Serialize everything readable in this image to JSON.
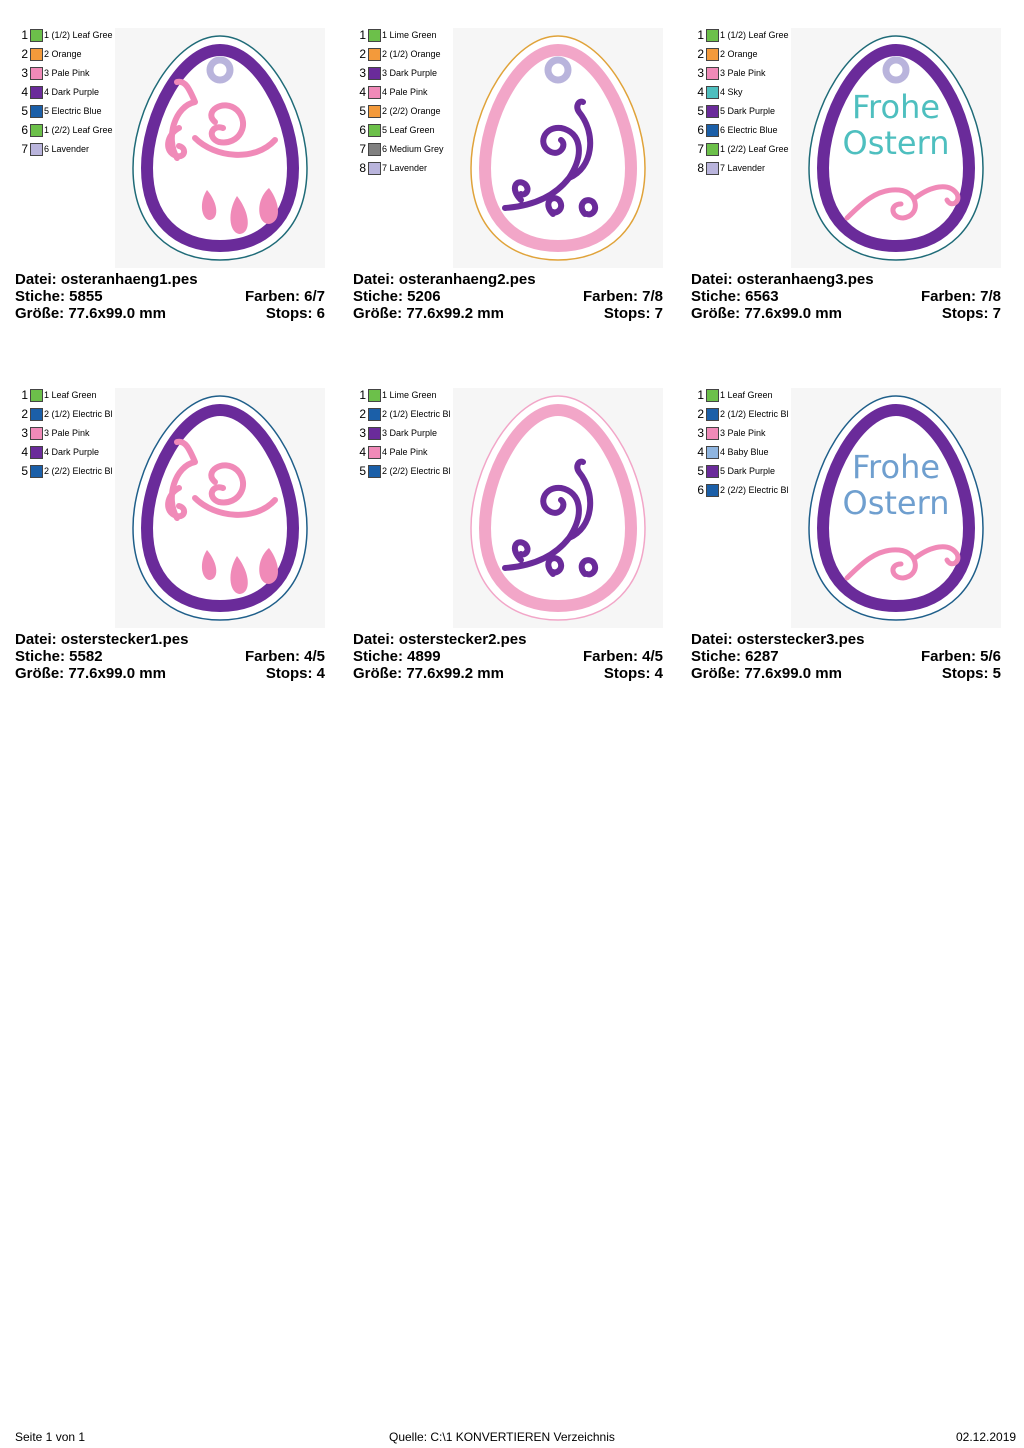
{
  "designs": [
    {
      "id": "osteranhaeng1",
      "file_label": "Datei: osteranhaeng1.pes",
      "stitches_label": "Stiche: 5855",
      "colors_label": "Farben: 6/7",
      "size_label": "Größe: 77.6x99.0 mm",
      "stops_label": "Stops: 6",
      "variant": "swirl-drops",
      "has_loop": true,
      "outline_color": "#6a2b9a",
      "border_color": "#1f6b78",
      "legend": [
        {
          "num": "1",
          "label": "1 (1/2) Leaf Gree",
          "color": "#6cc04a"
        },
        {
          "num": "2",
          "label": "2 Orange",
          "color": "#f39a3b"
        },
        {
          "num": "3",
          "label": "3 Pale Pink",
          "color": "#f08ab8"
        },
        {
          "num": "4",
          "label": "4 Dark Purple",
          "color": "#6a2b9a"
        },
        {
          "num": "5",
          "label": "5 Electric Blue",
          "color": "#1b5fa8"
        },
        {
          "num": "6",
          "label": "1 (2/2) Leaf Gree",
          "color": "#6cc04a"
        },
        {
          "num": "7",
          "label": "6 Lavender",
          "color": "#b9b4dc"
        }
      ]
    },
    {
      "id": "osteranhaeng2",
      "file_label": "Datei: osteranhaeng2.pes",
      "stitches_label": "Stiche: 5206",
      "colors_label": "Farben: 7/8",
      "size_label": "Größe: 77.6x99.2 mm",
      "stops_label": "Stops: 7",
      "variant": "curl",
      "has_loop": true,
      "outline_color": "#f2a6c8",
      "border_color": "#e0a33a",
      "legend": [
        {
          "num": "1",
          "label": "1 Lime Green",
          "color": "#6cc04a"
        },
        {
          "num": "2",
          "label": "2 (1/2) Orange",
          "color": "#f39a3b"
        },
        {
          "num": "3",
          "label": "3 Dark Purple",
          "color": "#6a2b9a"
        },
        {
          "num": "4",
          "label": "4 Pale Pink",
          "color": "#f08ab8"
        },
        {
          "num": "5",
          "label": "2 (2/2) Orange",
          "color": "#f39a3b"
        },
        {
          "num": "6",
          "label": "5 Leaf Green",
          "color": "#6cc04a"
        },
        {
          "num": "7",
          "label": "6 Medium Grey",
          "color": "#808080"
        },
        {
          "num": "8",
          "label": "7 Lavender",
          "color": "#b9b4dc"
        }
      ]
    },
    {
      "id": "osteranhaeng3",
      "file_label": "Datei: osteranhaeng3.pes",
      "stitches_label": "Stiche: 6563",
      "colors_label": "Farben: 7/8",
      "size_label": "Größe: 77.6x99.0 mm",
      "stops_label": "Stops: 7",
      "variant": "text",
      "has_loop": true,
      "text_line1": "Frohe",
      "text_line2": "Ostern",
      "text_color": "#4ebfbf",
      "outline_color": "#6a2b9a",
      "border_color": "#1f6b78",
      "legend": [
        {
          "num": "1",
          "label": "1 (1/2) Leaf Gree",
          "color": "#6cc04a"
        },
        {
          "num": "2",
          "label": "2 Orange",
          "color": "#f39a3b"
        },
        {
          "num": "3",
          "label": "3 Pale Pink",
          "color": "#f08ab8"
        },
        {
          "num": "4",
          "label": "4 Sky",
          "color": "#4ebfbf"
        },
        {
          "num": "5",
          "label": "5 Dark Purple",
          "color": "#6a2b9a"
        },
        {
          "num": "6",
          "label": "6 Electric Blue",
          "color": "#1b5fa8"
        },
        {
          "num": "7",
          "label": "1 (2/2) Leaf Gree",
          "color": "#6cc04a"
        },
        {
          "num": "8",
          "label": "7 Lavender",
          "color": "#b9b4dc"
        }
      ]
    },
    {
      "id": "osterstecker1",
      "file_label": "Datei: osterstecker1.pes",
      "stitches_label": "Stiche: 5582",
      "colors_label": "Farben: 4/5",
      "size_label": "Größe: 77.6x99.0 mm",
      "stops_label": "Stops: 4",
      "variant": "swirl-drops",
      "has_loop": false,
      "outline_color": "#6a2b9a",
      "border_color": "#1f5f8a",
      "legend": [
        {
          "num": "1",
          "label": "1 Leaf Green",
          "color": "#6cc04a"
        },
        {
          "num": "2",
          "label": "2 (1/2) Electric Bl",
          "color": "#1b5fa8"
        },
        {
          "num": "3",
          "label": "3 Pale Pink",
          "color": "#f08ab8"
        },
        {
          "num": "4",
          "label": "4 Dark Purple",
          "color": "#6a2b9a"
        },
        {
          "num": "5",
          "label": "2 (2/2) Electric Bl",
          "color": "#1b5fa8"
        }
      ]
    },
    {
      "id": "osterstecker2",
      "file_label": "Datei: osterstecker2.pes",
      "stitches_label": "Stiche: 4899",
      "colors_label": "Farben: 4/5",
      "size_label": "Größe: 77.6x99.2 mm",
      "stops_label": "Stops: 4",
      "variant": "curl",
      "has_loop": false,
      "outline_color": "#f2a6c8",
      "border_color": "#f2a6c8",
      "legend": [
        {
          "num": "1",
          "label": "1 Lime Green",
          "color": "#6cc04a"
        },
        {
          "num": "2",
          "label": "2 (1/2) Electric Bl",
          "color": "#1b5fa8"
        },
        {
          "num": "3",
          "label": "3 Dark Purple",
          "color": "#6a2b9a"
        },
        {
          "num": "4",
          "label": "4 Pale Pink",
          "color": "#f08ab8"
        },
        {
          "num": "5",
          "label": "2 (2/2) Electric Bl",
          "color": "#1b5fa8"
        }
      ]
    },
    {
      "id": "osterstecker3",
      "file_label": "Datei: osterstecker3.pes",
      "stitches_label": "Stiche: 6287",
      "colors_label": "Farben: 5/6",
      "size_label": "Größe: 77.6x99.0 mm",
      "stops_label": "Stops: 5",
      "variant": "text",
      "has_loop": false,
      "text_line1": "Frohe",
      "text_line2": "Ostern",
      "text_color": "#6f9fcf",
      "outline_color": "#6a2b9a",
      "border_color": "#1f5f8a",
      "legend": [
        {
          "num": "1",
          "label": "1 Leaf Green",
          "color": "#6cc04a"
        },
        {
          "num": "2",
          "label": "2 (1/2) Electric Bl",
          "color": "#1b5fa8"
        },
        {
          "num": "3",
          "label": "3 Pale Pink",
          "color": "#f08ab8"
        },
        {
          "num": "4",
          "label": "4 Baby Blue",
          "color": "#8fb5e0"
        },
        {
          "num": "5",
          "label": "5 Dark Purple",
          "color": "#6a2b9a"
        },
        {
          "num": "6",
          "label": "2 (2/2) Electric Bl",
          "color": "#1b5fa8"
        }
      ]
    }
  ],
  "footer": {
    "page": "Seite 1 von 1",
    "source": "Quelle: C:\\1 KONVERTIEREN Verzeichnis",
    "date": "02.12.2019"
  },
  "colors": {
    "pink": "#f08ab8",
    "purple": "#6a2b9a",
    "lavender": "#b9b4dc"
  }
}
